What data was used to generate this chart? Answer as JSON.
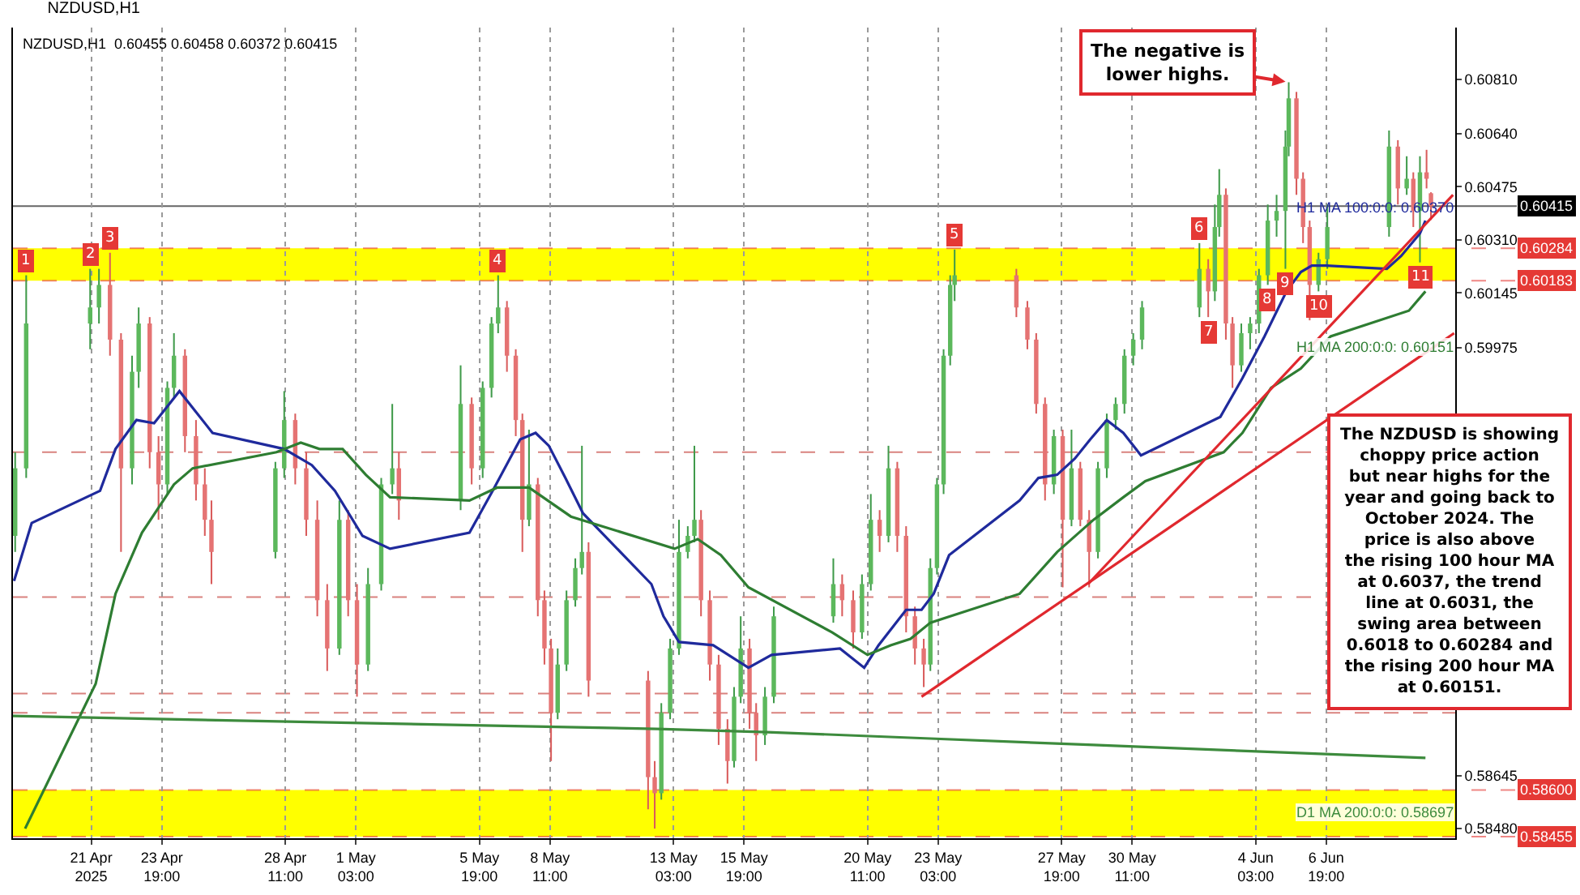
{
  "chart_data": {
    "type": "candlestick",
    "title": "NZDUSD,H1",
    "subtitle": "NZDUSD,H1  0.60455 0.60458 0.60372 0.60415",
    "x": [
      "2025-04-18T06:00",
      "2025-04-18T16:00",
      "2025-04-21T02:00",
      "2025-04-21T10:00",
      "2025-04-21T20:00",
      "2025-04-22T06:00",
      "2025-04-22T16:00",
      "2025-04-22T22:00",
      "2025-04-23T08:00",
      "2025-04-23T16:00",
      "2025-04-24T00:00",
      "2025-04-24T06:00",
      "2025-04-24T16:00",
      "2025-04-25T02:00",
      "2025-04-25T10:00",
      "2025-04-25T16:00",
      "2025-04-28T02:00",
      "2025-04-28T10:00",
      "2025-04-28T20:00",
      "2025-04-29T06:00",
      "2025-04-29T16:00",
      "2025-04-30T01:00",
      "2025-04-30T12:00",
      "2025-04-30T20:00",
      "2025-05-01T04:00",
      "2025-05-01T14:00",
      "2025-05-02T02:00",
      "2025-05-02T12:00",
      "2025-05-02T18:00",
      "2025-05-05T02:00",
      "2025-05-05T12:00",
      "2025-05-05T22:00",
      "2025-05-06T06:00",
      "2025-05-06T12:00",
      "2025-05-06T20:00",
      "2025-05-07T04:00",
      "2025-05-07T10:00",
      "2025-05-07T16:00",
      "2025-05-08T00:00",
      "2025-05-08T06:00",
      "2025-05-08T12:00",
      "2025-05-08T18:00",
      "2025-05-09T02:00",
      "2025-05-09T10:00",
      "2025-05-09T16:00",
      "2025-05-09T22:00",
      "2025-05-12T04:00",
      "2025-05-12T10:00",
      "2025-05-12T16:00",
      "2025-05-13T00:00",
      "2025-05-13T08:00",
      "2025-05-13T16:00",
      "2025-05-13T22:00",
      "2025-05-14T04:00",
      "2025-05-14T12:00",
      "2025-05-14T20:00",
      "2025-05-15T04:00",
      "2025-05-15T10:00",
      "2025-05-15T16:00",
      "2025-05-16T00:00",
      "2025-05-16T06:00",
      "2025-05-16T14:00",
      "2025-05-16T22:00",
      "2025-05-19T04:00",
      "2025-05-19T12:00",
      "2025-05-19T22:00",
      "2025-05-20T06:00",
      "2025-05-20T14:00",
      "2025-05-20T22:00",
      "2025-05-21T06:00",
      "2025-05-21T14:00",
      "2025-05-21T22:00",
      "2025-05-22T06:00",
      "2025-05-22T14:00",
      "2025-05-22T20:00",
      "2025-05-23T02:00",
      "2025-05-23T08:00",
      "2025-05-23T14:00",
      "2025-05-23T18:00",
      "2025-05-26T02:00",
      "2025-05-26T12:00",
      "2025-05-26T20:00",
      "2025-05-27T04:00",
      "2025-05-27T12:00",
      "2025-05-27T20:00",
      "2025-05-28T04:00",
      "2025-05-28T12:00",
      "2025-05-28T20:00",
      "2025-05-29T04:00",
      "2025-05-29T12:00",
      "2025-05-29T20:00",
      "2025-05-30T04:00",
      "2025-05-30T12:00",
      "2025-05-30T20:00",
      "2025-06-02T00:00",
      "2025-06-02T08:00",
      "2025-06-02T14:00",
      "2025-06-02T18:00",
      "2025-06-03T00:00",
      "2025-06-03T06:00",
      "2025-06-03T14:00",
      "2025-06-03T22:00",
      "2025-06-04T06:00",
      "2025-06-04T14:00",
      "2025-06-04T22:00",
      "2025-06-05T06:00",
      "2025-06-05T09:00",
      "2025-06-05T16:00",
      "2025-06-05T22:00",
      "2025-06-06T04:00",
      "2025-06-06T12:00",
      "2025-06-06T20:00",
      "2025-06-09T04:00",
      "2025-06-09T12:00",
      "2025-06-09T20:00",
      "2025-06-10T02:00",
      "2025-06-10T08:00",
      "2025-06-10T14:00",
      "2025-06-10T18:00"
    ],
    "ohlc": [
      [
        0.5939,
        0.5965,
        0.5934,
        0.596
      ],
      [
        0.596,
        0.602,
        0.5957,
        0.6005
      ],
      [
        0.6005,
        0.6022,
        0.5997,
        0.601
      ],
      [
        0.601,
        0.6022,
        0.6005,
        0.6017
      ],
      [
        0.6017,
        0.6027,
        0.5995,
        0.6
      ],
      [
        0.6,
        0.6002,
        0.5934,
        0.596
      ],
      [
        0.596,
        0.5995,
        0.5955,
        0.599
      ],
      [
        0.599,
        0.601,
        0.5985,
        0.6005
      ],
      [
        0.6005,
        0.6007,
        0.596,
        0.5965
      ],
      [
        0.5965,
        0.597,
        0.5944,
        0.5955
      ],
      [
        0.5955,
        0.5987,
        0.5952,
        0.5985
      ],
      [
        0.5985,
        0.6002,
        0.5982,
        0.5995
      ],
      [
        0.5995,
        0.5997,
        0.5965,
        0.597
      ],
      [
        0.597,
        0.5975,
        0.595,
        0.5955
      ],
      [
        0.5955,
        0.596,
        0.5939,
        0.5944
      ],
      [
        0.5944,
        0.595,
        0.5924,
        0.5934
      ],
      [
        0.5934,
        0.5962,
        0.5932,
        0.596
      ],
      [
        0.596,
        0.5984,
        0.5957,
        0.5975
      ],
      [
        0.5975,
        0.5977,
        0.5955,
        0.596
      ],
      [
        0.596,
        0.5965,
        0.5939,
        0.5944
      ],
      [
        0.5944,
        0.595,
        0.5914,
        0.5919
      ],
      [
        0.5919,
        0.5924,
        0.5897,
        0.5904
      ],
      [
        0.5904,
        0.595,
        0.5902,
        0.5944
      ],
      [
        0.5944,
        0.5947,
        0.5914,
        0.5919
      ],
      [
        0.5919,
        0.5924,
        0.5889,
        0.5899
      ],
      [
        0.5899,
        0.5929,
        0.5897,
        0.5924
      ],
      [
        0.5924,
        0.5957,
        0.5922,
        0.5955
      ],
      [
        0.5955,
        0.598,
        0.5952,
        0.596
      ],
      [
        0.596,
        0.5965,
        0.5944,
        0.595
      ],
      [
        0.595,
        0.5992,
        0.5947,
        0.598
      ],
      [
        0.598,
        0.5982,
        0.5955,
        0.596
      ],
      [
        0.596,
        0.5987,
        0.5957,
        0.5985
      ],
      [
        0.5985,
        0.6007,
        0.5982,
        0.6005
      ],
      [
        0.6005,
        0.602,
        0.6002,
        0.601
      ],
      [
        0.601,
        0.6012,
        0.599,
        0.5995
      ],
      [
        0.5995,
        0.5997,
        0.597,
        0.5975
      ],
      [
        0.5975,
        0.5977,
        0.5934,
        0.5944
      ],
      [
        0.5944,
        0.5972,
        0.5942,
        0.5955
      ],
      [
        0.5955,
        0.5957,
        0.5914,
        0.5919
      ],
      [
        0.5919,
        0.5922,
        0.5899,
        0.5904
      ],
      [
        0.5904,
        0.5907,
        0.5869,
        0.5884
      ],
      [
        0.5884,
        0.5904,
        0.5882,
        0.5899
      ],
      [
        0.5899,
        0.5922,
        0.5897,
        0.5919
      ],
      [
        0.5919,
        0.5932,
        0.5917,
        0.5929
      ],
      [
        0.5929,
        0.5967,
        0.5927,
        0.5934
      ],
      [
        0.5934,
        0.5937,
        0.5889,
        0.5894
      ],
      [
        0.5894,
        0.5897,
        0.5854,
        0.5864
      ],
      [
        0.5864,
        0.5869,
        0.5848,
        0.5859
      ],
      [
        0.5859,
        0.5887,
        0.5857,
        0.5884
      ],
      [
        0.5884,
        0.5907,
        0.5882,
        0.5904
      ],
      [
        0.5904,
        0.5944,
        0.5902,
        0.5934
      ],
      [
        0.5934,
        0.5942,
        0.5932,
        0.5939
      ],
      [
        0.5939,
        0.5967,
        0.5937,
        0.5944
      ],
      [
        0.5944,
        0.5947,
        0.5914,
        0.5919
      ],
      [
        0.5919,
        0.5922,
        0.5894,
        0.5899
      ],
      [
        0.5899,
        0.5902,
        0.5874,
        0.5879
      ],
      [
        0.5879,
        0.5882,
        0.5862,
        0.5869
      ],
      [
        0.5869,
        0.5892,
        0.5867,
        0.5889
      ],
      [
        0.5889,
        0.5914,
        0.5887,
        0.5904
      ],
      [
        0.5904,
        0.5907,
        0.5879,
        0.5884
      ],
      [
        0.5884,
        0.5887,
        0.5869,
        0.5877
      ],
      [
        0.5877,
        0.5892,
        0.5874,
        0.5889
      ],
      [
        0.5889,
        0.5917,
        0.5887,
        0.5914
      ],
      [
        0.5914,
        0.5932,
        0.5912,
        0.5924
      ],
      [
        0.5924,
        0.5927,
        0.5914,
        0.5919
      ],
      [
        0.5919,
        0.5922,
        0.5904,
        0.5909
      ],
      [
        0.5909,
        0.5927,
        0.5907,
        0.5924
      ],
      [
        0.5924,
        0.5952,
        0.5922,
        0.5944
      ],
      [
        0.5944,
        0.5947,
        0.5934,
        0.5939
      ],
      [
        0.5939,
        0.5967,
        0.5937,
        0.596
      ],
      [
        0.596,
        0.5962,
        0.5934,
        0.5939
      ],
      [
        0.5939,
        0.5942,
        0.5909,
        0.5914
      ],
      [
        0.5914,
        0.5917,
        0.5899,
        0.5904
      ],
      [
        0.5904,
        0.5907,
        0.5892,
        0.5899
      ],
      [
        0.5899,
        0.5932,
        0.5897,
        0.5929
      ],
      [
        0.5929,
        0.5957,
        0.5927,
        0.5955
      ],
      [
        0.5955,
        0.5997,
        0.5952,
        0.5995
      ],
      [
        0.5995,
        0.602,
        0.5992,
        0.6017
      ],
      [
        0.6017,
        0.6028,
        0.6012,
        0.602
      ],
      [
        0.602,
        0.6022,
        0.6007,
        0.601
      ],
      [
        0.601,
        0.6012,
        0.5997,
        0.6
      ],
      [
        0.6,
        0.6002,
        0.5977,
        0.598
      ],
      [
        0.598,
        0.5982,
        0.595,
        0.5955
      ],
      [
        0.5955,
        0.5972,
        0.5952,
        0.597
      ],
      [
        0.597,
        0.5972,
        0.5923,
        0.5944
      ],
      [
        0.5944,
        0.5972,
        0.5942,
        0.596
      ],
      [
        0.596,
        0.5962,
        0.5942,
        0.5944
      ],
      [
        0.5944,
        0.5947,
        0.5923,
        0.5934
      ],
      [
        0.5934,
        0.5962,
        0.5932,
        0.596
      ],
      [
        0.596,
        0.5977,
        0.5957,
        0.5975
      ],
      [
        0.5975,
        0.5982,
        0.5972,
        0.598
      ],
      [
        0.598,
        0.5997,
        0.5977,
        0.5995
      ],
      [
        0.5995,
        0.6002,
        0.5992,
        0.6
      ],
      [
        0.6,
        0.6012,
        0.5997,
        0.601
      ],
      [
        0.601,
        0.603,
        0.6007,
        0.6022
      ],
      [
        0.6022,
        0.6025,
        0.6007,
        0.6015
      ],
      [
        0.6015,
        0.6042,
        0.6012,
        0.6035
      ],
      [
        0.6035,
        0.6053,
        0.6032,
        0.6045
      ],
      [
        0.6045,
        0.6047,
        0.6,
        0.6005
      ],
      [
        0.6005,
        0.6007,
        0.5985,
        0.5992
      ],
      [
        0.5992,
        0.6005,
        0.599,
        0.6002
      ],
      [
        0.6002,
        0.6007,
        0.5997,
        0.6005
      ],
      [
        0.6005,
        0.6022,
        0.6002,
        0.602
      ],
      [
        0.602,
        0.6042,
        0.6017,
        0.6037
      ],
      [
        0.6037,
        0.6045,
        0.6032,
        0.604
      ],
      [
        0.604,
        0.6065,
        0.6022,
        0.606
      ],
      [
        0.606,
        0.608,
        0.6057,
        0.6075
      ],
      [
        0.6075,
        0.6077,
        0.6045,
        0.605
      ],
      [
        0.605,
        0.6052,
        0.603,
        0.6035
      ],
      [
        0.6035,
        0.6037,
        0.6006,
        0.6017
      ],
      [
        0.6017,
        0.6027,
        0.6015,
        0.6025
      ],
      [
        0.6025,
        0.6042,
        0.6022,
        0.6035
      ],
      [
        0.6035,
        0.6065,
        0.6032,
        0.606
      ],
      [
        0.606,
        0.6062,
        0.6042,
        0.6047
      ],
      [
        0.6047,
        0.6057,
        0.6045,
        0.605
      ],
      [
        0.605,
        0.6052,
        0.6035,
        0.604
      ],
      [
        0.604,
        0.6057,
        0.6024,
        0.6052
      ],
      [
        0.6052,
        0.6059,
        0.6047,
        0.605
      ],
      [
        0.60455,
        0.60458,
        0.60372,
        0.60415
      ]
    ],
    "series": [
      {
        "name": "H1 MA 100:0:0: 0.60370",
        "type": "line",
        "color": "#1f2a9c",
        "x": [
          "2025-04-18T05:00",
          "2025-04-18T21:00",
          "2025-04-21T11:00",
          "2025-04-22T01:00",
          "2025-04-22T20:00",
          "2025-04-23T12:00",
          "2025-04-24T11:00",
          "2025-04-25T17:00",
          "2025-04-28T10:00",
          "2025-04-29T11:00",
          "2025-04-30T08:00",
          "2025-05-01T09:00",
          "2025-05-02T10:00",
          "2025-05-05T10:00",
          "2025-05-06T07:00",
          "2025-05-07T08:00",
          "2025-05-07T22:00",
          "2025-05-08T10:00",
          "2025-05-09T01:00",
          "2025-05-09T17:00",
          "2025-05-12T07:00",
          "2025-05-12T18:00",
          "2025-05-13T08:00",
          "2025-05-14T15:00",
          "2025-05-15T23:00",
          "2025-05-16T20:00",
          "2025-05-19T10:00",
          "2025-05-20T08:00",
          "2025-05-20T21:00",
          "2025-05-21T22:00",
          "2025-05-22T12:00",
          "2025-05-22T23:00",
          "2025-05-23T13:00",
          "2025-05-26T05:00",
          "2025-05-26T22:00",
          "2025-05-27T15:00",
          "2025-05-28T07:00",
          "2025-05-28T21:00",
          "2025-05-29T12:00",
          "2025-05-30T03:00",
          "2025-05-30T19:00",
          "2025-06-02T19:00",
          "2025-06-03T15:00",
          "2025-06-04T11:00",
          "2025-06-05T07:00",
          "2025-06-05T20:00",
          "2025-06-06T06:00",
          "2025-06-06T19:00",
          "2025-06-09T02:00",
          "2025-06-09T15:00",
          "2025-06-10T08:00",
          "2025-06-10T13:00"
        ],
        "values": [
          0.5925,
          0.5943,
          0.5953,
          0.5966,
          0.5975,
          0.5974,
          0.5984,
          0.5971,
          0.5966,
          0.5961,
          0.5953,
          0.5939,
          0.5935,
          0.594,
          0.5953,
          0.5969,
          0.5971,
          0.5967,
          0.5957,
          0.5946,
          0.5924,
          0.5914,
          0.5906,
          0.5905,
          0.5898,
          0.5902,
          0.5904,
          0.5898,
          0.5905,
          0.5916,
          0.5916,
          0.5921,
          0.5933,
          0.595,
          0.5957,
          0.5958,
          0.5963,
          0.5969,
          0.5975,
          0.5971,
          0.5964,
          0.5976,
          0.5988,
          0.6001,
          0.6015,
          0.6021,
          0.6023,
          0.6023,
          0.6022,
          0.6026,
          0.6033,
          0.6037
        ]
      },
      {
        "name": "H1 MA 200:0:0: 0.60151",
        "type": "line",
        "color": "#2e7d32",
        "x": [
          "2025-04-18T15:00",
          "2025-04-21T07:00",
          "2025-04-22T01:00",
          "2025-04-23T01:00",
          "2025-04-24T06:00",
          "2025-04-24T23:00",
          "2025-04-28T03:00",
          "2025-04-29T01:00",
          "2025-04-29T18:00",
          "2025-04-30T15:00",
          "2025-05-01T12:00",
          "2025-05-02T10:00",
          "2025-05-05T10:00",
          "2025-05-06T11:00",
          "2025-05-07T16:00",
          "2025-05-09T06:00",
          "2025-05-13T04:00",
          "2025-05-14T01:00",
          "2025-05-14T22:00",
          "2025-05-15T23:00",
          "2025-05-19T03:00",
          "2025-05-20T11:00",
          "2025-05-21T08:00",
          "2025-05-22T02:00",
          "2025-05-22T20:00",
          "2025-05-26T05:00",
          "2025-05-27T15:00",
          "2025-05-29T00:00",
          "2025-05-30T03:00",
          "2025-05-30T23:00",
          "2025-06-02T22:00",
          "2025-06-03T15:00",
          "2025-06-04T17:00",
          "2025-06-05T20:00",
          "2025-06-06T23:00",
          "2025-06-09T22:00",
          "2025-06-10T13:00"
        ],
        "values": [
          0.5848,
          0.5893,
          0.5921,
          0.594,
          0.5955,
          0.596,
          0.5965,
          0.5968,
          0.5966,
          0.5966,
          0.5958,
          0.5951,
          0.595,
          0.5954,
          0.5954,
          0.5945,
          0.5935,
          0.5938,
          0.5933,
          0.5923,
          0.5909,
          0.5902,
          0.5905,
          0.5907,
          0.5912,
          0.5921,
          0.5934,
          0.5944,
          0.5951,
          0.5956,
          0.5965,
          0.5971,
          0.5985,
          0.5991,
          0.6001,
          0.6009,
          0.6015
        ]
      },
      {
        "name": "D1 MA 200:0:0: 0.58697",
        "type": "line",
        "color": "#3d8b3d",
        "x": [
          "2025-04-18T04:00",
          "2025-04-24T00:00",
          "2025-04-30T04:00",
          "2025-05-06T08:00",
          "2025-05-12T12:00",
          "2025-05-16T16:00",
          "2025-05-22T20:00",
          "2025-05-29T00:00",
          "2025-06-04T04:00",
          "2025-06-10T13:00"
        ],
        "values": [
          0.5883,
          0.5882,
          0.5881,
          0.588,
          0.5879,
          0.5878,
          0.5876,
          0.5874,
          0.5872,
          0.587
        ]
      },
      {
        "type": "line",
        "color": "#e0282e",
        "x": [
          "2025-05-22T12:00",
          "2025-06-11T15:00"
        ],
        "values": [
          0.5889,
          0.6002
        ]
      },
      {
        "type": "line",
        "color": "#e0282e",
        "x": [
          "2025-05-28T19:00",
          "2025-06-11T14:00"
        ],
        "values": [
          0.5924,
          0.6045
        ]
      }
    ],
    "xlim": [
      "2025-04-18T04:00",
      "2025-06-11T16:00"
    ],
    "xticks": [
      {
        "value": "2025-04-21T03:00",
        "label": "21 Apr 2025"
      },
      {
        "value": "2025-04-23T19:00",
        "label": "23 Apr 19:00"
      },
      {
        "value": "2025-04-28T11:00",
        "label": "28 Apr 11:00"
      },
      {
        "value": "2025-05-01T03:00",
        "label": "1 May 03:00"
      },
      {
        "value": "2025-05-05T19:00",
        "label": "5 May 19:00"
      },
      {
        "value": "2025-05-08T11:00",
        "label": "8 May 11:00"
      },
      {
        "value": "2025-05-13T03:00",
        "label": "13 May 03:00"
      },
      {
        "value": "2025-05-15T19:00",
        "label": "15 May 19:00"
      },
      {
        "value": "2025-05-20T11:00",
        "label": "20 May 11:00"
      },
      {
        "value": "2025-05-23T03:00",
        "label": "23 May 03:00"
      },
      {
        "value": "2025-05-27T19:00",
        "label": "27 May 19:00"
      },
      {
        "value": "2025-05-30T11:00",
        "label": "30 May 11:00"
      },
      {
        "value": "2025-06-04T03:00",
        "label": "4 Jun 03:00"
      },
      {
        "value": "2025-06-06T19:00",
        "label": "6 Jun 19:00"
      }
    ],
    "ylim": [
      0.5845,
      0.6097
    ],
    "yticks": [
      {
        "value": 0.6081,
        "label": "0.60810"
      },
      {
        "value": 0.6064,
        "label": "0.60640"
      },
      0.60475,
      {
        "value": 0.6031,
        "label": "0.60310"
      },
      0.60145,
      0.59975,
      0.58645,
      {
        "value": 0.5848,
        "label": "0.58480"
      }
    ],
    "bands": [
      {
        "axis": "y",
        "from": 0.60183,
        "to": 0.60284,
        "color": "#ffff00"
      },
      {
        "axis": "y",
        "from": 0.58455,
        "to": 0.586,
        "color": "#ffff00"
      }
    ],
    "ref_lines": [
      {
        "axis": "y",
        "value": 0.60415,
        "label": "0.60415",
        "color": "#000000",
        "line_style": "solid"
      },
      {
        "axis": "y",
        "value": 0.60284,
        "label": "0.60284",
        "color": "#e53935",
        "line_style": "dashed"
      },
      {
        "axis": "y",
        "value": 0.60183,
        "label": "0.60183",
        "color": "#e53935",
        "line_style": "dashed"
      },
      {
        "axis": "y",
        "value": 0.586,
        "label": "0.58600",
        "color": "#e53935",
        "line_style": "dashed"
      },
      {
        "axis": "y",
        "value": 0.58455,
        "label": "0.58455",
        "color": "#e53935",
        "line_style": "dashed"
      },
      {
        "axis": "y",
        "value": 0.5965,
        "color": "#d9827f",
        "line_style": "dashed"
      },
      {
        "axis": "y",
        "value": 0.592,
        "color": "#d9827f",
        "line_style": "dashed"
      },
      {
        "axis": "y",
        "value": 0.589,
        "color": "#d9827f",
        "line_style": "dashed"
      },
      {
        "axis": "y",
        "value": 0.5884,
        "color": "#d9827f",
        "line_style": "dashed"
      }
    ],
    "annotations": [
      {
        "text": "1",
        "x": "2025-04-18T16:00",
        "y": 0.602
      },
      {
        "text": "2",
        "x": "2025-04-21T02:00",
        "y": 0.6022
      },
      {
        "text": "3",
        "x": "2025-04-21T20:00",
        "y": 0.6027
      },
      {
        "text": "4",
        "x": "2025-05-06T12:00",
        "y": 0.602
      },
      {
        "text": "5",
        "x": "2025-05-23T18:00",
        "y": 0.6028
      },
      {
        "text": "6",
        "x": "2025-06-02T00:00",
        "y": 0.603
      },
      {
        "text": "7",
        "x": "2025-06-02T08:00",
        "y": 0.6007
      },
      {
        "text": "8",
        "x": "2025-06-04T14:00",
        "y": 0.6017
      },
      {
        "text": "9",
        "x": "2025-06-05T06:00",
        "y": 0.6022
      },
      {
        "text": "10",
        "x": "2025-06-06T12:00",
        "y": 0.6015
      },
      {
        "text": "11",
        "x": "2025-06-10T08:00",
        "y": 0.6024
      },
      {
        "text": "The negative is lower highs.",
        "x": "2025-06-05T09:00",
        "y": 0.608
      },
      "The NZDUSD is showing choppy price action but near highs for the year and going back to October 2024. The price is also above the rising 100 hour MA at 0.6037, the trend line at 0.6031, the swing area between 0.6018 to 0.60284 and the rising 200 hour MA at 0.60151."
    ],
    "grid": "x",
    "legend": false
  }
}
